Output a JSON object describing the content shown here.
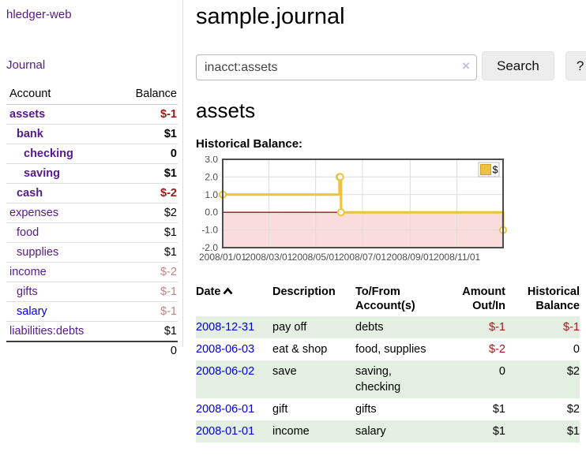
{
  "sidebar": {
    "brand": "hledger-web",
    "nav": {
      "journal": "Journal"
    },
    "accounts_table": {
      "headers": {
        "account": "Account",
        "balance": "Balance"
      },
      "rows": [
        {
          "name": "assets",
          "balance": "$-1",
          "level": 1,
          "emph": true,
          "name_color": "purple",
          "balance_color": "negative-strong"
        },
        {
          "name": "bank",
          "balance": "$1",
          "level": 2,
          "emph": true,
          "name_color": "purple",
          "balance_color": "normal"
        },
        {
          "name": "checking",
          "balance": "0",
          "level": 3,
          "emph": true,
          "name_color": "purple",
          "balance_color": "normal"
        },
        {
          "name": "saving",
          "balance": "$1",
          "level": 3,
          "emph": true,
          "name_color": "purple",
          "balance_color": "normal"
        },
        {
          "name": "cash",
          "balance": "$-2",
          "level": 2,
          "emph": true,
          "name_color": "purple",
          "balance_color": "negative-strong"
        },
        {
          "name": "expenses",
          "balance": "$2",
          "level": 1,
          "emph": false,
          "name_color": "purple",
          "balance_color": "normal"
        },
        {
          "name": "food",
          "balance": "$1",
          "level": 2,
          "emph": false,
          "name_color": "purple",
          "balance_color": "normal"
        },
        {
          "name": "supplies",
          "balance": "$1",
          "level": 2,
          "emph": false,
          "name_color": "purple",
          "balance_color": "normal"
        },
        {
          "name": "income",
          "balance": "$-2",
          "level": 1,
          "emph": false,
          "name_color": "purple",
          "balance_color": "negative-faded"
        },
        {
          "name": "gifts",
          "balance": "$-1",
          "level": 2,
          "emph": false,
          "name_color": "purple",
          "balance_color": "negative-faded"
        },
        {
          "name": "salary",
          "balance": "$-1",
          "level": 2,
          "emph": false,
          "name_color": "blue",
          "balance_color": "negative-faded"
        },
        {
          "name": "liabilities:debts",
          "balance": "$1",
          "level": 1,
          "emph": false,
          "name_color": "purple",
          "balance_color": "normal"
        }
      ],
      "total": "0"
    }
  },
  "main": {
    "title": "sample.journal",
    "search": {
      "value": "inacct:assets",
      "clear_label": "×",
      "button_label": "Search",
      "help_label": "?"
    },
    "account_heading": "assets",
    "register": {
      "headers": {
        "date": "Date",
        "description": "Description",
        "accounts": "To/From Account(s)",
        "amount": "Amount Out/In",
        "balance": "Historical Balance"
      },
      "rows": [
        {
          "date": "2008-12-31",
          "description": "pay off",
          "accounts": "debts",
          "amount": "$-1",
          "amount_negative": true,
          "balance": "$-1",
          "balance_negative": true,
          "shade": true
        },
        {
          "date": "2008-06-03",
          "description": "eat & shop",
          "accounts": "food, supplies",
          "amount": "$-2",
          "amount_negative": true,
          "balance": "0",
          "balance_negative": false,
          "shade": false
        },
        {
          "date": "2008-06-02",
          "description": "save",
          "accounts": "saving, checking",
          "amount": "0",
          "amount_negative": false,
          "balance": "$2",
          "balance_negative": false,
          "shade": true
        },
        {
          "date": "2008-06-01",
          "description": "gift",
          "accounts": "gifts",
          "amount": "$1",
          "amount_negative": false,
          "balance": "$2",
          "balance_negative": false,
          "shade": false
        },
        {
          "date": "2008-01-01",
          "description": "income",
          "accounts": "salary",
          "amount": "$1",
          "amount_negative": false,
          "balance": "$1",
          "balance_negative": false,
          "shade": true
        }
      ]
    }
  },
  "chart_data": {
    "type": "line",
    "title": "Historical Balance:",
    "step": true,
    "legend": {
      "label": "$",
      "position": "top-right"
    },
    "series": [
      {
        "name": "$",
        "points": [
          [
            "2008-01-01",
            1
          ],
          [
            "2008-06-01",
            2
          ],
          [
            "2008-06-02",
            2
          ],
          [
            "2008-06-03",
            0
          ],
          [
            "2008-12-31",
            -1
          ]
        ]
      }
    ],
    "x_start": "2008-01-01",
    "x_end": "2008-12-31",
    "x_ticks": [
      {
        "date": "2008-01-01",
        "label": "2008/01/01"
      },
      {
        "date": "2008-03-01",
        "label": "2008/03/01"
      },
      {
        "date": "2008-05-01",
        "label": "2008/05/01"
      },
      {
        "date": "2008-07-01",
        "label": "2008/07/01"
      },
      {
        "date": "2008-09-01",
        "label": "2008/09/01"
      },
      {
        "date": "2008-11-01",
        "label": "2008/11/01"
      }
    ],
    "y_ticks": [
      "3.0",
      "2.0",
      "1.0",
      "0.0",
      "-1.0",
      "-2.0"
    ],
    "ylim": [
      -2,
      3
    ],
    "grid": true,
    "colors": {
      "line": "#edc240",
      "marker_fill": "#ffffff",
      "negative_region": "#fbdcdc",
      "zero_line": "#8b1a1a",
      "gridline": "#dcdcdc",
      "border": "#4d4d4d",
      "tick_text": "#4d4d4d"
    }
  }
}
